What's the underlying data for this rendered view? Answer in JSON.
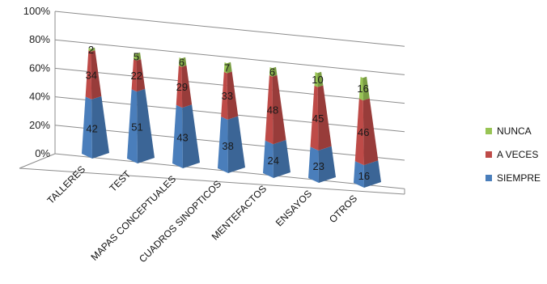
{
  "chart_data": {
    "type": "bar",
    "stacked_percent": true,
    "style": "3d-pyramid",
    "categories": [
      "TALLERES",
      "TEST",
      "MAPAS CONCEPTUALES",
      "CUADROS SINOPTICOS",
      "MENTEFACTOS",
      "ENSAYOS",
      "OTROS"
    ],
    "series": [
      {
        "name": "SIEMPRE",
        "values": [
          42,
          51,
          43,
          38,
          24,
          23,
          16
        ],
        "color": "#4a7ebb"
      },
      {
        "name": "A VECES",
        "values": [
          34,
          22,
          29,
          33,
          48,
          45,
          46
        ],
        "color": "#be4b48"
      },
      {
        "name": "NUNCA",
        "values": [
          2,
          5,
          6,
          7,
          6,
          10,
          16
        ],
        "color": "#98c454"
      }
    ],
    "ytick_labels": [
      "0%",
      "20%",
      "40%",
      "60%",
      "80%",
      "100%"
    ],
    "ylim": [
      0,
      100
    ],
    "grid": true,
    "legend": {
      "position": "right",
      "order": [
        "NUNCA",
        "A VECES",
        "SIEMPRE"
      ]
    },
    "title": "",
    "xlabel": "",
    "ylabel": ""
  }
}
